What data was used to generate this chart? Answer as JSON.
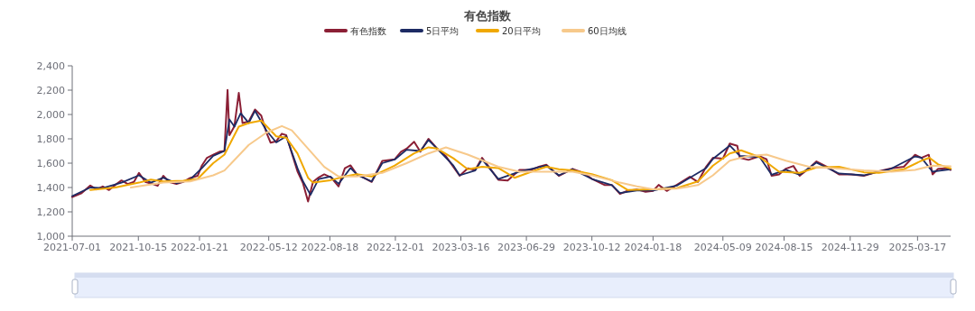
{
  "chart_data": {
    "type": "line",
    "title": "有色指数",
    "legend": "top",
    "xlim": [
      "2021-07-01",
      "2025-05-09"
    ],
    "xticks": [
      {
        "value": "2021-07-01",
        "label": "2021-07-01"
      },
      {
        "value": "2021-10-15",
        "label": "2021-10-15"
      },
      {
        "value": "2022-01-21",
        "label": "2022-01-21"
      },
      {
        "value": "2022-05-12",
        "label": "2022-05-12"
      },
      {
        "value": "2022-08-18",
        "label": "2022-08-18"
      },
      {
        "value": "2022-12-01",
        "label": "2022-12-01"
      },
      {
        "value": "2023-03-16",
        "label": "2023-03-16"
      },
      {
        "value": "2023-06-29",
        "label": "2023-06-29"
      },
      {
        "value": "2023-10-12",
        "label": "2023-10-12"
      },
      {
        "value": "2024-01-18",
        "label": "2024-01-18"
      },
      {
        "value": "2024-05-09",
        "label": "2024-05-09"
      },
      {
        "value": "2024-08-15",
        "label": "2024-08-15"
      },
      {
        "value": "2024-11-29",
        "label": "2024-11-29"
      },
      {
        "value": "2025-03-17",
        "label": "2025-03-17"
      }
    ],
    "ylim": [
      1000,
      2400
    ],
    "yticks": [
      {
        "value": 1000,
        "label": "1,000"
      },
      {
        "value": 1200,
        "label": "1,200"
      },
      {
        "value": 1400,
        "label": "1,400"
      },
      {
        "value": 1600,
        "label": "1,600"
      },
      {
        "value": 1800,
        "label": "1,800"
      },
      {
        "value": 2000,
        "label": "2,000"
      },
      {
        "value": 2200,
        "label": "2,200"
      },
      {
        "value": 2400,
        "label": "2,400"
      }
    ],
    "series": [
      {
        "name": "有色指数",
        "color": "#8b1f35",
        "x": [
          "2021-07-01",
          "2021-07-16",
          "2021-07-30",
          "2021-08-09",
          "2021-08-19",
          "2021-08-29",
          "2021-09-08",
          "2021-09-18",
          "2021-09-28",
          "2021-10-08",
          "2021-10-16",
          "2021-10-26",
          "2021-11-04",
          "2021-11-15",
          "2021-11-24",
          "2021-12-03",
          "2021-12-15",
          "2021-12-26",
          "2022-01-06",
          "2022-01-18",
          "2022-01-25",
          "2022-02-02",
          "2022-02-12",
          "2022-02-22",
          "2022-03-02",
          "2022-03-07",
          "2022-03-10",
          "2022-03-18",
          "2022-03-25",
          "2022-03-31",
          "2022-04-10",
          "2022-04-20",
          "2022-04-30",
          "2022-05-08",
          "2022-05-15",
          "2022-05-24",
          "2022-06-02",
          "2022-06-09",
          "2022-06-18",
          "2022-06-27",
          "2022-07-06",
          "2022-07-14",
          "2022-07-22",
          "2022-07-31",
          "2022-08-09",
          "2022-08-20",
          "2022-09-01",
          "2022-09-11",
          "2022-09-20",
          "2022-09-30",
          "2022-10-06",
          "2022-10-24",
          "2022-11-10",
          "2022-11-30",
          "2022-12-10",
          "2022-12-19",
          "2022-12-31",
          "2023-01-10",
          "2023-01-23",
          "2023-02-06",
          "2023-02-20",
          "2023-03-04",
          "2023-03-14",
          "2023-03-27",
          "2023-04-08",
          "2023-04-19",
          "2023-04-30",
          "2023-05-15",
          "2023-05-30",
          "2023-06-18",
          "2023-07-07",
          "2023-07-19",
          "2023-07-31",
          "2023-08-20",
          "2023-09-11",
          "2023-09-28",
          "2023-10-12",
          "2023-11-01",
          "2023-11-13",
          "2023-11-26",
          "2023-12-08",
          "2023-12-23",
          "2024-01-06",
          "2024-01-18",
          "2024-01-27",
          "2024-02-09",
          "2024-02-25",
          "2024-03-17",
          "2024-03-30",
          "2024-04-12",
          "2024-04-23",
          "2024-05-09",
          "2024-05-20",
          "2024-06-01",
          "2024-06-05",
          "2024-06-19",
          "2024-07-07",
          "2024-07-18",
          "2024-07-26",
          "2024-08-07",
          "2024-08-18",
          "2024-08-30",
          "2024-09-09",
          "2024-09-24",
          "2024-10-06",
          "2024-10-23",
          "2024-11-11",
          "2024-12-01",
          "2024-12-21",
          "2025-01-14",
          "2025-02-03",
          "2025-02-23",
          "2025-03-13",
          "2025-03-23",
          "2025-04-04",
          "2025-04-10",
          "2025-04-19",
          "2025-05-01",
          "2025-05-09"
        ],
        "values": [
          1322,
          1354,
          1416,
          1384,
          1409,
          1379,
          1421,
          1458,
          1429,
          1446,
          1520,
          1446,
          1434,
          1414,
          1496,
          1446,
          1429,
          1446,
          1478,
          1496,
          1582,
          1644,
          1669,
          1694,
          1701,
          2202,
          1830,
          1904,
          2177,
          1929,
          1942,
          2041,
          1991,
          1855,
          1768,
          1780,
          1842,
          1830,
          1681,
          1533,
          1434,
          1285,
          1446,
          1483,
          1508,
          1483,
          1409,
          1558,
          1582,
          1508,
          1496,
          1446,
          1619,
          1632,
          1694,
          1719,
          1776,
          1694,
          1800,
          1719,
          1657,
          1570,
          1496,
          1558,
          1545,
          1644,
          1570,
          1463,
          1458,
          1545,
          1545,
          1570,
          1587,
          1496,
          1553,
          1520,
          1471,
          1421,
          1421,
          1347,
          1372,
          1384,
          1364,
          1372,
          1421,
          1372,
          1421,
          1488,
          1446,
          1570,
          1644,
          1637,
          1761,
          1743,
          1644,
          1627,
          1657,
          1632,
          1496,
          1508,
          1555,
          1577,
          1496,
          1558,
          1614,
          1570,
          1508,
          1508,
          1496,
          1533,
          1558,
          1570,
          1669,
          1644,
          1669,
          1508,
          1553,
          1558,
          1545
        ]
      },
      {
        "name": "5日平均",
        "color": "#1d2b64",
        "x": [
          "2021-07-01",
          "2021-07-30",
          "2021-08-19",
          "2021-09-18",
          "2021-10-16",
          "2021-11-04",
          "2021-11-24",
          "2021-12-15",
          "2022-01-06",
          "2022-01-25",
          "2022-02-12",
          "2022-03-02",
          "2022-03-10",
          "2022-03-18",
          "2022-03-28",
          "2022-04-10",
          "2022-04-20",
          "2022-05-08",
          "2022-05-24",
          "2022-06-09",
          "2022-06-27",
          "2022-07-06",
          "2022-07-18",
          "2022-07-31",
          "2022-08-19",
          "2022-09-01",
          "2022-09-20",
          "2022-10-02",
          "2022-10-24",
          "2022-11-10",
          "2022-11-30",
          "2022-12-19",
          "2023-01-10",
          "2023-01-23",
          "2023-02-06",
          "2023-03-04",
          "2023-03-14",
          "2023-04-08",
          "2023-04-19",
          "2023-05-15",
          "2023-06-18",
          "2023-07-31",
          "2023-08-20",
          "2023-09-11",
          "2023-10-12",
          "2023-11-13",
          "2023-11-26",
          "2023-12-23",
          "2024-01-18",
          "2024-02-25",
          "2024-04-12",
          "2024-04-23",
          "2024-05-20",
          "2024-06-05",
          "2024-07-07",
          "2024-07-26",
          "2024-08-18",
          "2024-09-09",
          "2024-10-06",
          "2024-11-11",
          "2024-12-21",
          "2025-02-03",
          "2025-03-13",
          "2025-03-23",
          "2025-04-10",
          "2025-05-09"
        ],
        "values": [
          1330,
          1400,
          1395,
          1440,
          1500,
          1440,
          1480,
          1435,
          1465,
          1560,
          1660,
          1700,
          1960,
          1900,
          2010,
          1930,
          2030,
          1870,
          1770,
          1820,
          1560,
          1450,
          1340,
          1470,
          1490,
          1430,
          1560,
          1500,
          1450,
          1600,
          1630,
          1710,
          1700,
          1790,
          1720,
          1580,
          1500,
          1540,
          1630,
          1470,
          1530,
          1580,
          1500,
          1550,
          1470,
          1420,
          1355,
          1376,
          1375,
          1415,
          1560,
          1635,
          1745,
          1660,
          1650,
          1505,
          1545,
          1505,
          1605,
          1515,
          1500,
          1555,
          1655,
          1645,
          1530,
          1550
        ]
      },
      {
        "name": "20日平均",
        "color": "#f0a800",
        "x": [
          "2021-07-30",
          "2021-09-08",
          "2021-10-16",
          "2021-11-04",
          "2021-11-24",
          "2021-12-26",
          "2022-01-18",
          "2022-02-12",
          "2022-03-02",
          "2022-03-25",
          "2022-04-10",
          "2022-04-30",
          "2022-05-24",
          "2022-06-09",
          "2022-06-27",
          "2022-07-14",
          "2022-07-22",
          "2022-08-19",
          "2022-09-11",
          "2022-09-30",
          "2022-10-24",
          "2022-11-30",
          "2022-12-31",
          "2023-01-23",
          "2023-02-06",
          "2023-03-04",
          "2023-03-27",
          "2023-04-19",
          "2023-05-15",
          "2023-06-10",
          "2023-07-07",
          "2023-07-31",
          "2023-08-20",
          "2023-09-11",
          "2023-10-12",
          "2023-11-13",
          "2023-12-08",
          "2024-01-18",
          "2024-02-25",
          "2024-03-30",
          "2024-04-23",
          "2024-05-20",
          "2024-06-07",
          "2024-07-07",
          "2024-08-07",
          "2024-09-09",
          "2024-10-06",
          "2024-11-11",
          "2024-12-21",
          "2025-01-14",
          "2025-02-23",
          "2025-03-23",
          "2025-04-05",
          "2025-04-19",
          "2025-05-09"
        ],
        "values": [
          1380,
          1400,
          1440,
          1465,
          1450,
          1455,
          1470,
          1600,
          1670,
          1900,
          1930,
          1950,
          1820,
          1810,
          1680,
          1480,
          1440,
          1460,
          1490,
          1510,
          1490,
          1580,
          1680,
          1730,
          1720,
          1640,
          1550,
          1570,
          1560,
          1480,
          1530,
          1570,
          1550,
          1540,
          1510,
          1460,
          1380,
          1385,
          1395,
          1450,
          1580,
          1680,
          1706,
          1650,
          1530,
          1520,
          1565,
          1570,
          1525,
          1520,
          1550,
          1620,
          1644,
          1590,
          1555
        ]
      },
      {
        "name": "60日均线",
        "color": "#f7c98b",
        "x": [
          "2021-10-03",
          "2021-11-24",
          "2022-01-06",
          "2022-02-12",
          "2022-03-02",
          "2022-04-10",
          "2022-05-08",
          "2022-06-02",
          "2022-06-18",
          "2022-07-14",
          "2022-08-09",
          "2022-09-01",
          "2022-09-30",
          "2022-11-10",
          "2022-12-19",
          "2023-01-23",
          "2023-02-20",
          "2023-03-27",
          "2023-05-15",
          "2023-06-18",
          "2023-07-31",
          "2023-09-11",
          "2023-10-12",
          "2023-11-26",
          "2023-12-23",
          "2024-01-18",
          "2024-02-25",
          "2024-03-30",
          "2024-04-23",
          "2024-05-20",
          "2024-06-19",
          "2024-07-18",
          "2024-08-18",
          "2024-09-24",
          "2024-11-11",
          "2024-12-21",
          "2025-02-03",
          "2025-03-13",
          "2025-04-10",
          "2025-05-09"
        ],
        "values": [
          1400,
          1440,
          1450,
          1500,
          1540,
          1750,
          1850,
          1905,
          1870,
          1720,
          1570,
          1490,
          1490,
          1520,
          1600,
          1680,
          1730,
          1670,
          1570,
          1530,
          1530,
          1530,
          1500,
          1440,
          1410,
          1385,
          1390,
          1420,
          1500,
          1620,
          1660,
          1670,
          1620,
          1570,
          1555,
          1540,
          1530,
          1545,
          1580,
          1575
        ]
      }
    ]
  }
}
